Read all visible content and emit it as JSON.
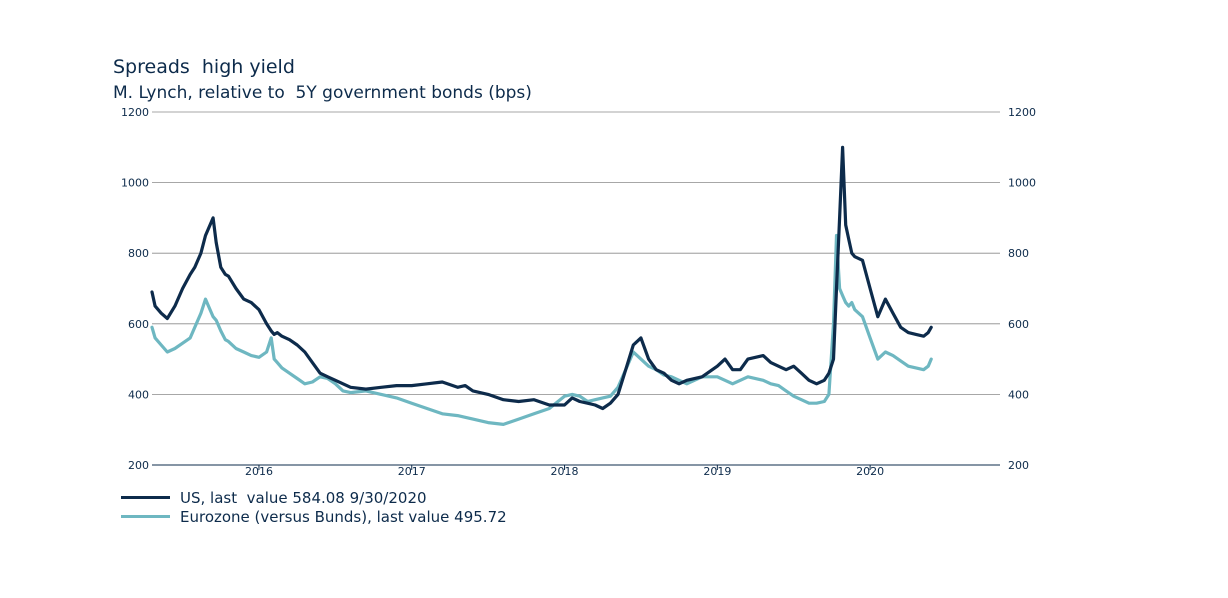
{
  "title": "Spreads  high yield",
  "subtitle": "M. Lynch, relative to  5Y government bonds (bps)",
  "chart_data": {
    "type": "line",
    "y_ticks": [
      "200",
      "400",
      "600",
      "800",
      "1000",
      "1200"
    ],
    "ylim": [
      200,
      1200
    ],
    "x_ticks": [
      "2016",
      "2017",
      "2018",
      "2019",
      "2020"
    ],
    "x_tick_positions": [
      2016,
      2017,
      2018,
      2019,
      2020
    ],
    "xlim": [
      2015.3,
      2020.85
    ],
    "grid": "horizontal",
    "legend_position": "bottom-left",
    "series": [
      {
        "name": "US, last  value 584.08 9/30/2020",
        "color": "#0d2b4b",
        "x": [
          2015.3,
          2015.32,
          2015.36,
          2015.4,
          2015.45,
          2015.5,
          2015.55,
          2015.58,
          2015.62,
          2015.65,
          2015.7,
          2015.72,
          2015.75,
          2015.78,
          2015.8,
          2015.85,
          2015.9,
          2015.95,
          2016.0,
          2016.05,
          2016.08,
          2016.1,
          2016.12,
          2016.15,
          2016.2,
          2016.25,
          2016.3,
          2016.35,
          2016.4,
          2016.45,
          2016.5,
          2016.55,
          2016.6,
          2016.7,
          2016.8,
          2016.9,
          2017.0,
          2017.1,
          2017.2,
          2017.3,
          2017.35,
          2017.4,
          2017.5,
          2017.6,
          2017.7,
          2017.8,
          2017.9,
          2018.0,
          2018.05,
          2018.1,
          2018.15,
          2018.2,
          2018.25,
          2018.3,
          2018.35,
          2018.4,
          2018.45,
          2018.5,
          2018.55,
          2018.6,
          2018.65,
          2018.7,
          2018.75,
          2018.8,
          2018.9,
          2019.0,
          2019.05,
          2019.1,
          2019.15,
          2019.2,
          2019.3,
          2019.35,
          2019.4,
          2019.45,
          2019.5,
          2019.55,
          2019.6,
          2019.65,
          2019.7,
          2019.73,
          2019.76,
          2019.78,
          2019.8,
          2019.82,
          2019.84,
          2019.86,
          2019.88,
          2019.9,
          2019.95,
          2020.0,
          2020.05,
          2020.1,
          2020.15,
          2020.2,
          2020.25,
          2020.3,
          2020.35,
          2020.38,
          2020.4
        ],
        "values": [
          690,
          650,
          630,
          615,
          650,
          700,
          740,
          760,
          800,
          850,
          900,
          830,
          760,
          740,
          735,
          700,
          670,
          660,
          640,
          600,
          580,
          570,
          575,
          565,
          555,
          540,
          520,
          490,
          460,
          450,
          440,
          430,
          420,
          415,
          420,
          425,
          425,
          430,
          435,
          420,
          425,
          410,
          400,
          385,
          380,
          385,
          370,
          370,
          390,
          380,
          375,
          370,
          360,
          375,
          400,
          470,
          540,
          560,
          500,
          470,
          460,
          440,
          430,
          440,
          450,
          480,
          500,
          470,
          470,
          500,
          510,
          490,
          480,
          470,
          480,
          460,
          440,
          430,
          440,
          460,
          500,
          700,
          900,
          1100,
          880,
          840,
          800,
          790,
          780,
          700,
          620,
          670,
          630,
          590,
          575,
          570,
          565,
          575,
          590
        ]
      },
      {
        "name": "Eurozone (versus Bunds), last value 495.72",
        "color": "#6eb7c1",
        "x": [
          2015.3,
          2015.32,
          2015.36,
          2015.4,
          2015.45,
          2015.5,
          2015.55,
          2015.58,
          2015.62,
          2015.65,
          2015.7,
          2015.72,
          2015.75,
          2015.78,
          2015.8,
          2015.85,
          2015.9,
          2015.95,
          2016.0,
          2016.05,
          2016.08,
          2016.1,
          2016.12,
          2016.15,
          2016.2,
          2016.25,
          2016.3,
          2016.35,
          2016.4,
          2016.45,
          2016.5,
          2016.55,
          2016.6,
          2016.7,
          2016.8,
          2016.9,
          2017.0,
          2017.1,
          2017.2,
          2017.3,
          2017.35,
          2017.4,
          2017.5,
          2017.6,
          2017.7,
          2017.8,
          2017.9,
          2018.0,
          2018.05,
          2018.1,
          2018.15,
          2018.2,
          2018.25,
          2018.3,
          2018.35,
          2018.4,
          2018.45,
          2018.5,
          2018.55,
          2018.6,
          2018.65,
          2018.7,
          2018.75,
          2018.8,
          2018.9,
          2019.0,
          2019.05,
          2019.1,
          2019.15,
          2019.2,
          2019.3,
          2019.35,
          2019.4,
          2019.45,
          2019.5,
          2019.55,
          2019.6,
          2019.65,
          2019.7,
          2019.73,
          2019.76,
          2019.78,
          2019.8,
          2019.82,
          2019.84,
          2019.86,
          2019.88,
          2019.9,
          2019.95,
          2020.0,
          2020.05,
          2020.1,
          2020.15,
          2020.2,
          2020.25,
          2020.3,
          2020.35,
          2020.38,
          2020.4
        ],
        "values": [
          590,
          560,
          540,
          520,
          530,
          545,
          560,
          590,
          630,
          670,
          620,
          610,
          580,
          555,
          550,
          530,
          520,
          510,
          505,
          520,
          560,
          500,
          490,
          475,
          460,
          445,
          430,
          435,
          450,
          445,
          430,
          410,
          405,
          410,
          400,
          390,
          375,
          360,
          345,
          340,
          335,
          330,
          320,
          315,
          330,
          345,
          360,
          395,
          400,
          395,
          380,
          385,
          390,
          395,
          420,
          470,
          520,
          500,
          480,
          470,
          455,
          450,
          440,
          430,
          450,
          450,
          440,
          430,
          440,
          450,
          440,
          430,
          425,
          410,
          395,
          385,
          375,
          375,
          380,
          400,
          600,
          850,
          700,
          680,
          660,
          650,
          660,
          640,
          620,
          560,
          500,
          520,
          510,
          495,
          480,
          475,
          470,
          480,
          500
        ]
      }
    ]
  }
}
